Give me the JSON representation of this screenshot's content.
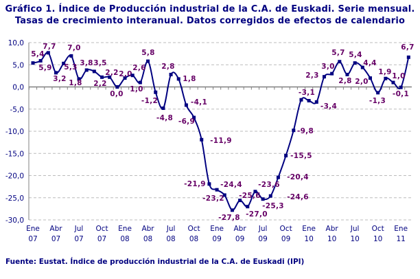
{
  "chart_data": {
    "type": "line",
    "title": "Gráfico 1. Índice de Producción industrial de la C.A. de Euskadi. Serie mensual.",
    "subtitle": "Tasas de crecimiento interanual. Datos corregidos de efectos de calendario",
    "source": "Fuente: Eustat. Índice de producción industrial de la C.A. de Euskadi (IPI)",
    "ylim": [
      -30,
      10
    ],
    "yticks": [
      "10,0",
      "5,0",
      "0,0",
      "-5,0",
      "-10,0",
      "-15,0",
      "-20,0",
      "-25,0",
      "-30,0"
    ],
    "ytick_values": [
      10,
      5,
      0,
      -5,
      -10,
      -15,
      -20,
      -25,
      -30
    ],
    "xticks": [
      [
        "Ene",
        "07"
      ],
      [
        "Abr",
        "07"
      ],
      [
        "Jul",
        "07"
      ],
      [
        "Oct",
        "07"
      ],
      [
        "Ene",
        "08"
      ],
      [
        "Abr",
        "08"
      ],
      [
        "Jul",
        "08"
      ],
      [
        "Oct",
        "08"
      ],
      [
        "Ene",
        "09"
      ],
      [
        "Abr",
        "09"
      ],
      [
        "Jul",
        "09"
      ],
      [
        "Oct",
        "09"
      ],
      [
        "Ene",
        "10"
      ],
      [
        "Abr",
        "10"
      ],
      [
        "Jul",
        "10"
      ],
      [
        "Oct",
        "10"
      ],
      [
        "Ene",
        "11"
      ]
    ],
    "grid": "horizontal dashed",
    "line_color": "#000080",
    "label_color": "#660066",
    "x_start": "2007-01",
    "values": [
      5.4,
      5.9,
      7.7,
      3.2,
      5.3,
      7.0,
      1.8,
      3.8,
      3.5,
      2.2,
      2.2,
      0.0,
      2.0,
      2.6,
      1.0,
      5.8,
      -1.2,
      -4.8,
      2.8,
      1.8,
      -4.1,
      -6.9,
      -11.9,
      -21.9,
      -23.2,
      -24.4,
      -27.8,
      -25.6,
      -27.0,
      -23.6,
      -25.3,
      -24.6,
      -20.4,
      -15.5,
      -9.8,
      -2.9,
      -3.1,
      -3.4,
      2.3,
      3.0,
      5.7,
      2.8,
      5.4,
      4.4,
      2.0,
      -1.3,
      1.9,
      1.0,
      -0.1,
      6.7
    ],
    "labels": [
      "5,4",
      "5,9",
      "7,7",
      "3,2",
      "5,3",
      "7,0",
      "1,8",
      "3,8",
      "3,5",
      "2,2",
      "2,2",
      "0,0",
      "2,0",
      "2,6",
      "1,0",
      "5,8",
      "-1,2",
      "-4,8",
      "2,8",
      "1,8",
      "-4,1",
      "-6,9",
      "-11,9",
      "-21,9",
      "-23,2",
      "-24,4",
      "-27,8",
      "-25,6",
      "-27,0",
      "-23,6",
      "-25,3",
      "-24,6",
      "-20,4",
      "-15,5",
      "-9,8",
      null,
      "-3,1",
      "-3,4",
      "2,3",
      "3,0",
      "5,7",
      "2,8",
      "5,4",
      "4,4",
      "2,0",
      "-1,3",
      "1,9",
      "1,0",
      "-0,1",
      "6,7"
    ]
  }
}
